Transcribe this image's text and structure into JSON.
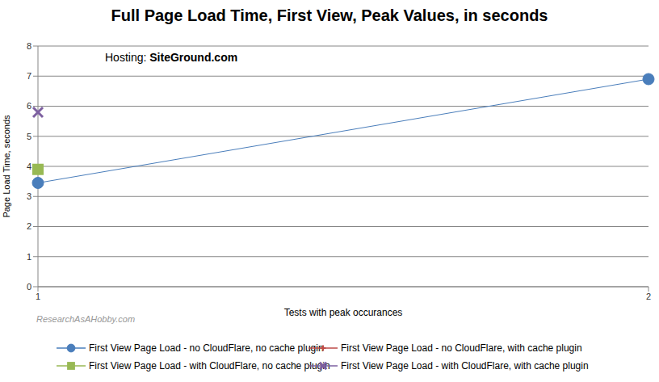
{
  "chart_data": {
    "type": "line",
    "title": "Full Page Load Time, First View, Peak Values, in seconds",
    "annotations": [
      "Hosting: SiteGround.com",
      "ResearchAsAHobby.com"
    ],
    "x_label": "Tests with peak occurances",
    "y_label": "Page Load Time, seconds",
    "categories": [
      "1",
      "2"
    ],
    "series": [
      {
        "name": "First View Page Load - no CloudFlare, no cache plugin",
        "color": "#4a7ebb",
        "marker": "circle",
        "line_style": "solid",
        "values": [
          3.45,
          6.9
        ]
      },
      {
        "name": "First View Page Load - no CloudFlare, with cache plugin",
        "color": "#be4b48",
        "marker": "plus",
        "line_style": "solid",
        "values": [
          null,
          null
        ]
      },
      {
        "name": "First View Page Load - with CloudFlare, no cache plugin",
        "color": "#98b954",
        "marker": "square",
        "line_style": "solid",
        "values": [
          3.9,
          null
        ]
      },
      {
        "name": "First View Page Load - with CloudFlare, with cache plugin",
        "color": "#7d60a0",
        "marker": "x",
        "line_style": "solid",
        "values": [
          5.8,
          null
        ]
      }
    ],
    "ylim": [
      0,
      8
    ],
    "yticks": [
      0,
      1,
      2,
      3,
      4,
      5,
      6,
      7,
      8
    ],
    "grid": true,
    "legend": "bottom"
  }
}
